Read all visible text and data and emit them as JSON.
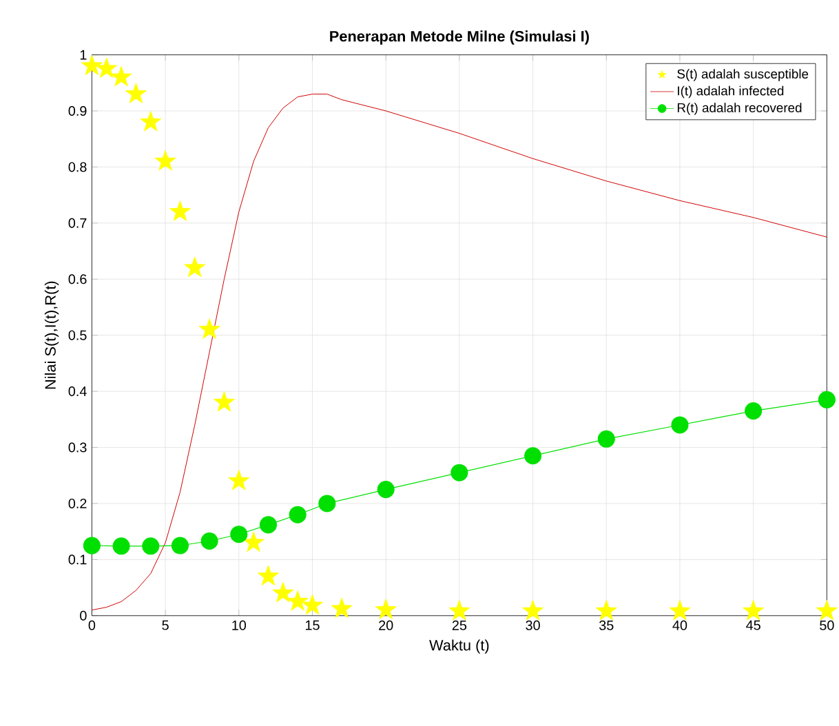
{
  "chart_data": {
    "type": "line",
    "title": "Penerapan Metode Milne (Simulasi I)",
    "xlabel": "Waktu (t)",
    "ylabel": "Nilai S(t),I(t),R(t)",
    "xlim": [
      0,
      50
    ],
    "ylim": [
      0,
      1
    ],
    "xticks": [
      0,
      5,
      10,
      15,
      20,
      25,
      30,
      35,
      40,
      45,
      50
    ],
    "yticks": [
      0,
      0.1,
      0.2,
      0.3,
      0.4,
      0.5,
      0.6,
      0.7,
      0.8,
      0.9,
      1
    ],
    "grid": true,
    "legend": "top right",
    "series": [
      {
        "name": "S(t) adalah susceptible",
        "type": "scatter",
        "color": "#ffff00",
        "marker": "star",
        "x": [
          0,
          1,
          2,
          3,
          4,
          5,
          6,
          7,
          8,
          9,
          10,
          11,
          12,
          13,
          14,
          15,
          17,
          20,
          25,
          30,
          35,
          40,
          45,
          50
        ],
        "values": [
          0.98,
          0.975,
          0.96,
          0.93,
          0.88,
          0.81,
          0.72,
          0.62,
          0.51,
          0.38,
          0.24,
          0.13,
          0.07,
          0.04,
          0.025,
          0.018,
          0.012,
          0.01,
          0.008,
          0.008,
          0.008,
          0.008,
          0.008,
          0.008
        ]
      },
      {
        "name": "I(t) adalah infected",
        "color": "#d00000",
        "marker": "none",
        "line_style": "solid",
        "x": [
          0,
          1,
          2,
          3,
          4,
          5,
          6,
          7,
          8,
          9,
          10,
          11,
          12,
          13,
          14,
          15,
          16,
          17,
          20,
          25,
          30,
          35,
          40,
          45,
          50
        ],
        "values": [
          0.01,
          0.015,
          0.025,
          0.045,
          0.075,
          0.13,
          0.22,
          0.34,
          0.47,
          0.6,
          0.72,
          0.81,
          0.87,
          0.905,
          0.925,
          0.93,
          0.93,
          0.92,
          0.9,
          0.86,
          0.815,
          0.775,
          0.74,
          0.71,
          0.675
        ]
      },
      {
        "name": "R(t) adalah recovered",
        "color": "#00e000",
        "marker": "circle",
        "line_style": "solid",
        "x": [
          0,
          2,
          4,
          6,
          8,
          10,
          12,
          14,
          16,
          20,
          25,
          30,
          35,
          40,
          45,
          50
        ],
        "values": [
          0.125,
          0.124,
          0.124,
          0.125,
          0.133,
          0.145,
          0.162,
          0.18,
          0.2,
          0.225,
          0.255,
          0.285,
          0.315,
          0.34,
          0.365,
          0.385
        ]
      }
    ]
  }
}
